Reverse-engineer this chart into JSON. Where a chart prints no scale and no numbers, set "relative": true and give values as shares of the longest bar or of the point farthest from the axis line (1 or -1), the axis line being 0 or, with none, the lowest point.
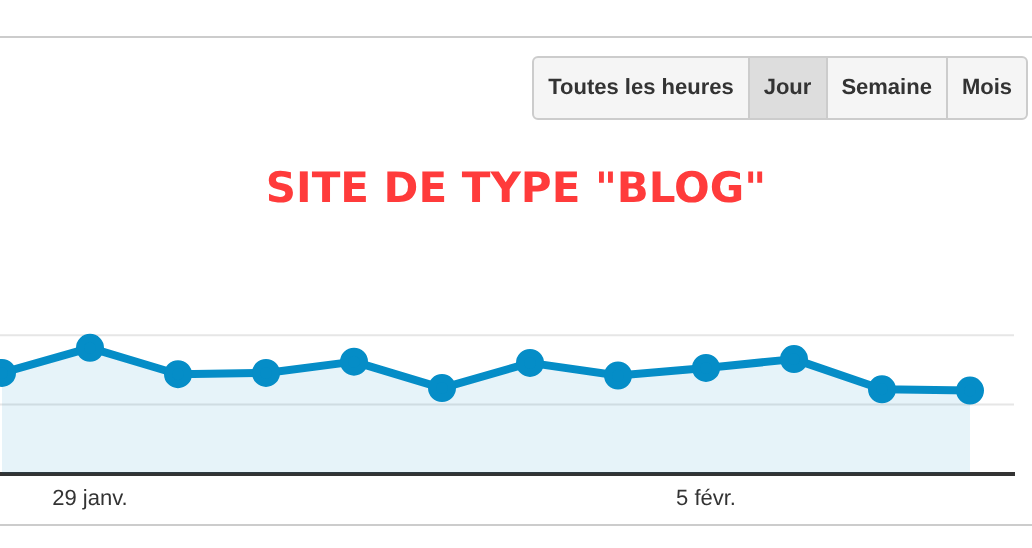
{
  "chart_data": {
    "type": "area",
    "title": "SITE DE TYPE \"BLOG\"",
    "relative": true,
    "categories": [
      null,
      "29 janv.",
      null,
      null,
      null,
      null,
      null,
      null,
      "5 févr.",
      null,
      null,
      null
    ],
    "series": [
      {
        "color": "#058dc7",
        "values": [
          0.8,
          1,
          0.79,
          0.8,
          0.89,
          0.68,
          0.88,
          0.78,
          0.84,
          0.91,
          0.67,
          0.66
        ]
      }
    ],
    "marker": "circle",
    "legend": false,
    "ref_lines": [
      {
        "axis": "y",
        "value": 0.55,
        "color": "#e6e6e6"
      },
      {
        "axis": "y",
        "value": 1.1,
        "color": "#e6e6e6"
      }
    ],
    "annotations": [
      "Toutes les heures",
      "Jour",
      "Semaine",
      "Mois"
    ]
  }
}
